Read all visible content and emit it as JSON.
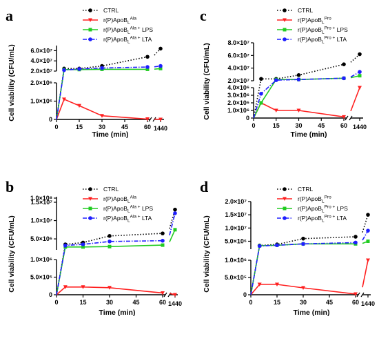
{
  "panels": [
    {
      "letter": "a",
      "ylabel": "Cell viability (CFU/mL)",
      "xlabel": "Time (min)",
      "x_tick_labels": [
        "0",
        "15",
        "30",
        "45",
        "60",
        "1440"
      ],
      "y_ticks_lower": [
        "0",
        "1.0×10⁶",
        "2.0×10⁶"
      ],
      "y_ticks_upper": [
        "2.0×10⁷",
        "4.0×10⁷",
        "6.0×10⁷"
      ],
      "legend": [
        {
          "name": "CTRL",
          "sup": "",
          "suffix": "",
          "color": "#000000",
          "marker": "circle",
          "dash": "dot"
        },
        {
          "name": "r(P)ApoB",
          "sub": "L",
          "sup": "Ala",
          "suffix": "",
          "color": "#ff2020",
          "marker": "triangle-down",
          "dash": "solid"
        },
        {
          "name": "r(P)ApoB",
          "sub": "L",
          "sup": "Ala +",
          "suffix": " LPS",
          "color": "#22cc22",
          "marker": "square",
          "dash": "solid"
        },
        {
          "name": "r(P)ApoB",
          "sub": "L",
          "sup": "Ala +",
          "suffix": " LTA",
          "color": "#1f1fff",
          "marker": "circle",
          "dash": "dashdot"
        }
      ]
    },
    {
      "letter": "c",
      "ylabel": "Cell viability (CFU/mL)",
      "xlabel": "Time (min)",
      "x_tick_labels": [
        "0",
        "15",
        "30",
        "45",
        "60",
        "1440"
      ],
      "y_ticks_lower": [
        "0",
        "1.0×10⁶",
        "2.0×10⁶",
        "3.0×10⁶",
        "4.0×10⁶"
      ],
      "y_ticks_upper": [
        "2.0×10⁷",
        "4.0×10⁷",
        "6.0×10⁷",
        "8.0×10⁷"
      ],
      "legend": [
        {
          "name": "CTRL",
          "sup": "",
          "suffix": "",
          "color": "#000000",
          "marker": "circle",
          "dash": "dot"
        },
        {
          "name": "r(P)ApoB",
          "sub": "L",
          "sup": "Pro",
          "suffix": "",
          "color": "#ff2020",
          "marker": "triangle-down",
          "dash": "solid"
        },
        {
          "name": "r(P)ApoB",
          "sub": "L",
          "sup": "Pro +",
          "suffix": " LPS",
          "color": "#22cc22",
          "marker": "square",
          "dash": "solid"
        },
        {
          "name": "r(P)ApoB",
          "sub": "L",
          "sup": "Pro +",
          "suffix": " LTA",
          "color": "#1f1fff",
          "marker": "circle",
          "dash": "dashdot"
        }
      ]
    },
    {
      "letter": "b",
      "ylabel": "Cell viability (CFU/mL)",
      "xlabel": "Time (min)",
      "x_tick_labels": [
        "0",
        "15",
        "30",
        "45",
        "60",
        "1440"
      ],
      "y_ticks_lower": [
        "0",
        "5.0×10⁵",
        "1.0×10⁶"
      ],
      "y_ticks_upper": [
        "5.0×10⁶",
        "1.0×10⁷",
        "1.5×10⁷",
        "1.0×10⁸"
      ],
      "legend": [
        {
          "name": "CTRL",
          "sup": "",
          "suffix": "",
          "color": "#000000",
          "marker": "circle",
          "dash": "dot"
        },
        {
          "name": "r(P)ApoB",
          "sub": "L",
          "sup": "Ala",
          "suffix": "",
          "color": "#ff2020",
          "marker": "triangle-down",
          "dash": "solid"
        },
        {
          "name": "r(P)ApoB",
          "sub": "L",
          "sup": "Ala +",
          "suffix": " LPS",
          "color": "#22cc22",
          "marker": "square",
          "dash": "solid"
        },
        {
          "name": "r(P)ApoB",
          "sub": "L",
          "sup": "Ala +",
          "suffix": " LTA",
          "color": "#1f1fff",
          "marker": "circle",
          "dash": "dashdot"
        }
      ]
    },
    {
      "letter": "d",
      "ylabel": "Cell viability (CFU/mL)",
      "xlabel": "Time (min)",
      "x_tick_labels": [
        "0",
        "15",
        "30",
        "45",
        "60",
        "1440"
      ],
      "y_ticks_lower": [
        "0",
        "5.0×10⁵",
        "1.0×10⁶"
      ],
      "y_ticks_upper": [
        "5.0×10⁶",
        "1.0×10⁷",
        "1.5×10⁷",
        "2.0×10⁷"
      ],
      "legend": [
        {
          "name": "CTRL",
          "sup": "",
          "suffix": "",
          "color": "#000000",
          "marker": "circle",
          "dash": "dot"
        },
        {
          "name": "r(P)ApoB",
          "sub": "L",
          "sup": "Pro",
          "suffix": "",
          "color": "#ff2020",
          "marker": "triangle-down",
          "dash": "solid"
        },
        {
          "name": "r(P)ApoB",
          "sub": "L",
          "sup": "Pro +",
          "suffix": " LPS",
          "color": "#22cc22",
          "marker": "square",
          "dash": "solid"
        },
        {
          "name": "r(P)ApoB",
          "sub": "L",
          "sup": "Pro +",
          "suffix": " LTA",
          "color": "#1f1fff",
          "marker": "circle",
          "dash": "dashdot"
        }
      ]
    }
  ],
  "chart_data": [
    {
      "type": "line",
      "panel": "a",
      "x": [
        0,
        5,
        15,
        30,
        60,
        1440
      ],
      "x_axis_break": [
        65,
        1440
      ],
      "y_axis_break": [
        2000000,
        20000000
      ],
      "ylim_lower": [
        0,
        2000000
      ],
      "ylim_upper": [
        20000000,
        70000000
      ],
      "series": [
        {
          "name": "CTRL",
          "values": [
            0,
            25000000,
            25000000,
            30000000,
            48000000,
            64000000
          ]
        },
        {
          "name": "r(P)ApoBL Ala",
          "values": [
            0,
            1100000,
            750000,
            200000,
            20000,
            0
          ]
        },
        {
          "name": "r(P)ApoBL Ala + LPS",
          "values": [
            0,
            23000000,
            23000000,
            23500000,
            23500000,
            25000000
          ]
        },
        {
          "name": "r(P)ApoBL Ala + LTA",
          "values": [
            0,
            22000000,
            24000000,
            26000000,
            28000000,
            30000000
          ]
        }
      ]
    },
    {
      "type": "line",
      "panel": "c",
      "x": [
        0,
        5,
        15,
        30,
        60,
        1440
      ],
      "x_axis_break": [
        65,
        1440
      ],
      "y_axis_break": [
        4000000,
        20000000
      ],
      "ylim_lower": [
        0,
        4000000
      ],
      "ylim_upper": [
        20000000,
        80000000
      ],
      "series": [
        {
          "name": "CTRL",
          "values": [
            0,
            23000000,
            23000000,
            29000000,
            46000000,
            62000000
          ]
        },
        {
          "name": "r(P)ApoBL Pro",
          "values": [
            0,
            2000000,
            1000000,
            1000000,
            150000,
            4000000
          ]
        },
        {
          "name": "r(P)ApoBL Pro + LPS",
          "values": [
            0,
            2000000,
            22000000,
            22000000,
            24000000,
            28000000
          ]
        },
        {
          "name": "r(P)ApoBL Pro + LTA",
          "values": [
            0,
            3200000,
            21000000,
            22000000,
            24000000,
            34000000
          ]
        }
      ]
    },
    {
      "type": "line",
      "panel": "b",
      "x": [
        0,
        5,
        15,
        30,
        60,
        1440
      ],
      "x_axis_break": [
        65,
        1440
      ],
      "y_axis_break": [
        1000000,
        2000000
      ],
      "ylim_lower": [
        0,
        1000000
      ],
      "ylim_upper": [
        2000000,
        15000000
      ],
      "series": [
        {
          "name": "CTRL",
          "values": [
            0,
            3500000,
            4000000,
            5800000,
            6500000,
            13000000
          ]
        },
        {
          "name": "r(P)ApoBL Ala",
          "values": [
            0,
            220000,
            220000,
            200000,
            50000,
            0
          ]
        },
        {
          "name": "r(P)ApoBL Ala + LPS",
          "values": [
            0,
            2800000,
            2800000,
            2900000,
            3300000,
            7500000
          ]
        },
        {
          "name": "r(P)ApoBL Ala + LTA",
          "values": [
            0,
            3200000,
            3500000,
            4300000,
            4500000,
            12000000
          ]
        }
      ]
    },
    {
      "type": "line",
      "panel": "d",
      "x": [
        0,
        5,
        15,
        30,
        60,
        1440
      ],
      "x_axis_break": [
        65,
        1440
      ],
      "y_axis_break": [
        1000000,
        2000000
      ],
      "ylim_lower": [
        0,
        1000000
      ],
      "ylim_upper": [
        2000000,
        20000000
      ],
      "series": [
        {
          "name": "CTRL",
          "values": [
            0,
            3400000,
            3800000,
            6000000,
            6700000,
            15000000
          ]
        },
        {
          "name": "r(P)ApoBL Pro",
          "values": [
            0,
            300000,
            300000,
            200000,
            20000,
            1000000
          ]
        },
        {
          "name": "r(P)ApoBL Pro + LPS",
          "values": [
            0,
            3300000,
            3500000,
            4000000,
            4000000,
            5000000
          ]
        },
        {
          "name": "r(P)ApoBL Pro + LTA",
          "values": [
            0,
            3200000,
            3500000,
            4000000,
            4500000,
            9000000
          ]
        }
      ]
    }
  ]
}
